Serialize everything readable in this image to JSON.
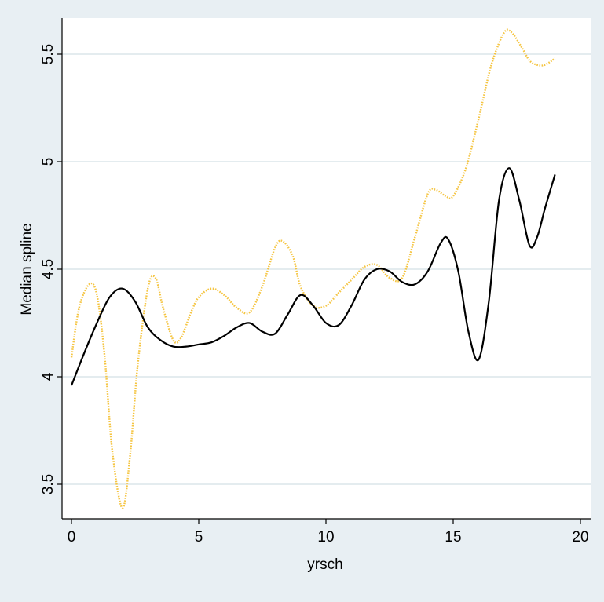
{
  "chart_data": {
    "type": "line",
    "xlabel": "yrsch",
    "ylabel": "Median spline",
    "xlim": [
      0,
      20
    ],
    "ylim": [
      3.5,
      5.5
    ],
    "xticks": [
      0,
      5,
      10,
      15,
      20
    ],
    "yticks": [
      3.5,
      4,
      4.5,
      5,
      5.5
    ],
    "grid": "horizontal",
    "colors": {
      "background": "#e8eff3",
      "plot_area": "#ffffff",
      "gridline": "#e4ecef"
    },
    "series": [
      {
        "style": "solid",
        "color": "#000000",
        "x": [
          0,
          0.5,
          1,
          1.5,
          2,
          2.5,
          3,
          3.5,
          4,
          4.5,
          5,
          5.5,
          6,
          6.5,
          7,
          7.5,
          8,
          8.5,
          9,
          9.5,
          10,
          10.5,
          11,
          11.5,
          12,
          12.5,
          13,
          13.5,
          14,
          14.5,
          14.8,
          15.2,
          15.6,
          16,
          16.4,
          16.8,
          17.2,
          17.6,
          18,
          18.3,
          18.6,
          19
        ],
        "y": [
          3.96,
          4.11,
          4.25,
          4.37,
          4.41,
          4.35,
          4.23,
          4.17,
          4.14,
          4.14,
          4.15,
          4.16,
          4.19,
          4.23,
          4.25,
          4.21,
          4.2,
          4.29,
          4.38,
          4.33,
          4.25,
          4.24,
          4.33,
          4.45,
          4.5,
          4.49,
          4.44,
          4.43,
          4.49,
          4.62,
          4.64,
          4.49,
          4.21,
          4.08,
          4.35,
          4.82,
          4.97,
          4.82,
          4.61,
          4.65,
          4.78,
          4.94
        ]
      },
      {
        "style": "dotted",
        "color": "#f5c542",
        "x": [
          0,
          0.3,
          0.7,
          1,
          1.3,
          1.6,
          2,
          2.3,
          2.6,
          3,
          3.3,
          3.6,
          4,
          4.3,
          4.7,
          5,
          5.5,
          6,
          6.5,
          7,
          7.5,
          8,
          8.3,
          8.7,
          9,
          9.5,
          10,
          10.5,
          11,
          11.5,
          12,
          12.5,
          13,
          13.5,
          14,
          14.3,
          14.7,
          15,
          15.5,
          16,
          16.5,
          17,
          17.3,
          17.7,
          18,
          18.3,
          18.6,
          19
        ],
        "y": [
          4.09,
          4.32,
          4.43,
          4.38,
          4.1,
          3.66,
          3.39,
          3.63,
          4.05,
          4.41,
          4.46,
          4.32,
          4.17,
          4.18,
          4.3,
          4.37,
          4.41,
          4.38,
          4.32,
          4.3,
          4.42,
          4.6,
          4.63,
          4.56,
          4.42,
          4.33,
          4.33,
          4.39,
          4.45,
          4.51,
          4.52,
          4.46,
          4.46,
          4.65,
          4.85,
          4.87,
          4.84,
          4.84,
          4.97,
          5.2,
          5.45,
          5.6,
          5.6,
          5.53,
          5.47,
          5.45,
          5.45,
          5.48
        ]
      }
    ]
  }
}
